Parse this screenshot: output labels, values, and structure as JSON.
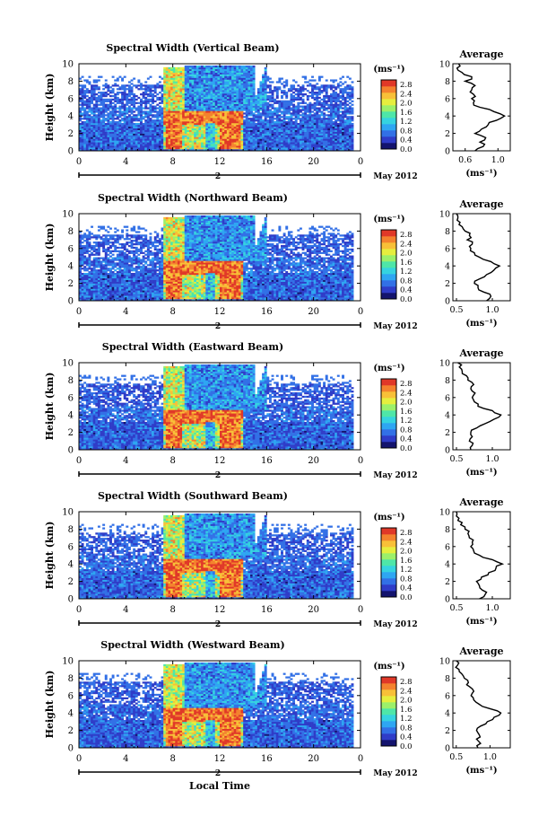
{
  "chart_data": {
    "type": "heatmap",
    "xlabel": "Local Time",
    "date_label": "May 2012",
    "x_ticks": [
      "0",
      "4",
      "8",
      "12",
      "16",
      "20",
      "0"
    ],
    "day_marker": "2",
    "xlim": [
      0,
      24
    ],
    "ylabel": "Height (km)",
    "y_ticks": [
      "0",
      "2",
      "4",
      "6",
      "8",
      "10"
    ],
    "ylim": [
      0,
      10
    ],
    "colorbar": {
      "unit": "(ms⁻¹)",
      "tick_labels": [
        "0.0",
        "0.4",
        "0.8",
        "1.2",
        "1.6",
        "2.0",
        "2.4",
        "2.8"
      ],
      "range": [
        0.0,
        3.0
      ],
      "colors": [
        "#14146e",
        "#2f3cc8",
        "#3270e6",
        "#2ea6f2",
        "#35d3e0",
        "#4ee6a8",
        "#9cf06a",
        "#e6ee3e",
        "#f8c038",
        "#f4822e",
        "#e03828"
      ]
    },
    "profile": {
      "title": "Average",
      "xlabel": "(ms⁻¹)",
      "y_ticks": [
        "0",
        "2",
        "4",
        "6",
        "8",
        "10"
      ],
      "ylim": [
        0,
        10
      ],
      "heights": [
        0.0,
        0.5,
        1.0,
        1.5,
        2.0,
        2.5,
        3.0,
        3.5,
        4.0,
        4.5,
        5.0,
        5.5,
        6.0,
        6.5,
        7.0,
        7.5,
        8.0,
        8.5,
        9.0,
        9.5,
        10.0
      ]
    },
    "panels": [
      {
        "title": "Spectral Width (Vertical Beam)",
        "profile_ticks": [
          "0.6",
          "1.0"
        ],
        "profile_xlim": [
          0.45,
          1.15
        ],
        "profile_values": [
          0.72,
          0.82,
          0.78,
          0.85,
          0.72,
          0.8,
          0.88,
          0.98,
          1.08,
          0.95,
          0.78,
          0.7,
          0.68,
          0.7,
          0.68,
          0.72,
          0.6,
          0.68,
          0.56,
          0.5,
          0.52
        ]
      },
      {
        "title": "Spectral Width (Northward Beam)",
        "profile_ticks": [
          "0.5",
          "1.0"
        ],
        "profile_xlim": [
          0.45,
          1.25
        ],
        "profile_values": [
          0.92,
          0.98,
          0.88,
          0.8,
          0.75,
          0.82,
          0.92,
          1.02,
          1.1,
          0.98,
          0.82,
          0.75,
          0.7,
          0.72,
          0.65,
          0.68,
          0.62,
          0.58,
          0.55,
          0.52,
          0.5
        ]
      },
      {
        "title": "Spectral Width (Eastward Beam)",
        "profile_ticks": [
          "0.5",
          "1.0"
        ],
        "profile_xlim": [
          0.45,
          1.25
        ],
        "profile_values": [
          0.7,
          0.72,
          0.68,
          0.72,
          0.7,
          0.78,
          0.9,
          1.02,
          1.12,
          1.0,
          0.8,
          0.75,
          0.72,
          0.76,
          0.7,
          0.74,
          0.66,
          0.64,
          0.58,
          0.54,
          0.52
        ]
      },
      {
        "title": "Spectral Width (Southward Beam)",
        "profile_ticks": [
          "0.5",
          "1.0"
        ],
        "profile_xlim": [
          0.45,
          1.25
        ],
        "profile_values": [
          0.82,
          0.9,
          0.86,
          0.82,
          0.78,
          0.85,
          0.95,
          1.05,
          1.14,
          1.0,
          0.82,
          0.74,
          0.7,
          0.72,
          0.68,
          0.66,
          0.62,
          0.56,
          0.52,
          0.5,
          0.5
        ]
      },
      {
        "title": "Spectral Width (Westward Beam)",
        "profile_ticks": [
          "0.5",
          "1.0"
        ],
        "profile_xlim": [
          0.45,
          1.3
        ],
        "profile_values": [
          0.82,
          0.86,
          0.8,
          0.84,
          0.8,
          0.86,
          0.96,
          1.06,
          1.16,
          1.0,
          0.84,
          0.76,
          0.72,
          0.76,
          0.7,
          0.68,
          0.62,
          0.58,
          0.54,
          0.52,
          0.5
        ]
      }
    ]
  }
}
